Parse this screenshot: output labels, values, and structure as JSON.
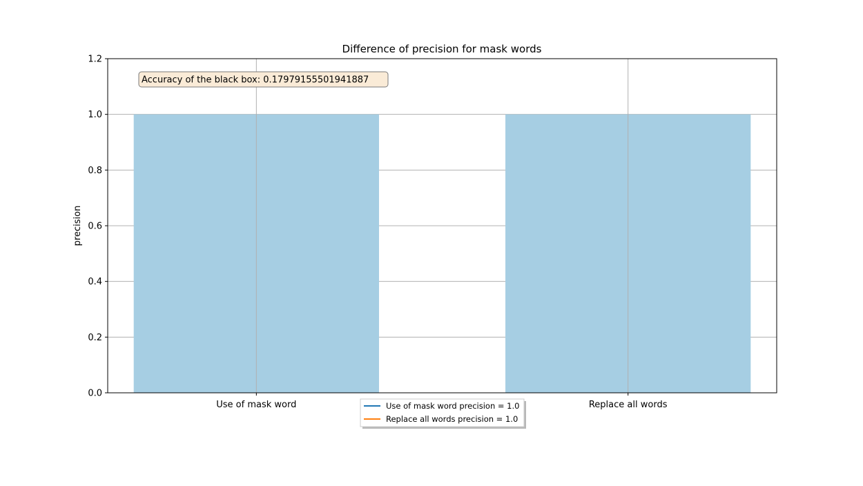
{
  "chart_data": {
    "type": "bar",
    "title": "Difference of precision for mask words",
    "xlabel": "",
    "ylabel": "precision",
    "categories": [
      "Use of mask word",
      "Replace all words"
    ],
    "values": [
      1.0,
      1.0
    ],
    "ylim": [
      0,
      1.2
    ],
    "yticks": [
      "0.0",
      "0.2",
      "0.4",
      "0.6",
      "0.8",
      "1.0",
      "1.2"
    ],
    "grid": true,
    "bar_color": "#a6cee3",
    "annotation": {
      "text": "Accuracy of the black box: 0.17979155501941887",
      "placement": "top-left",
      "background": "#faebd7"
    },
    "legend": {
      "placement": "bottom-center",
      "entries": [
        {
          "label": "Use of mask word precision = 1.0",
          "color": "#1f77b4"
        },
        {
          "label": "Replace all words precision = 1.0",
          "color": "#ff7f0e"
        }
      ]
    }
  }
}
